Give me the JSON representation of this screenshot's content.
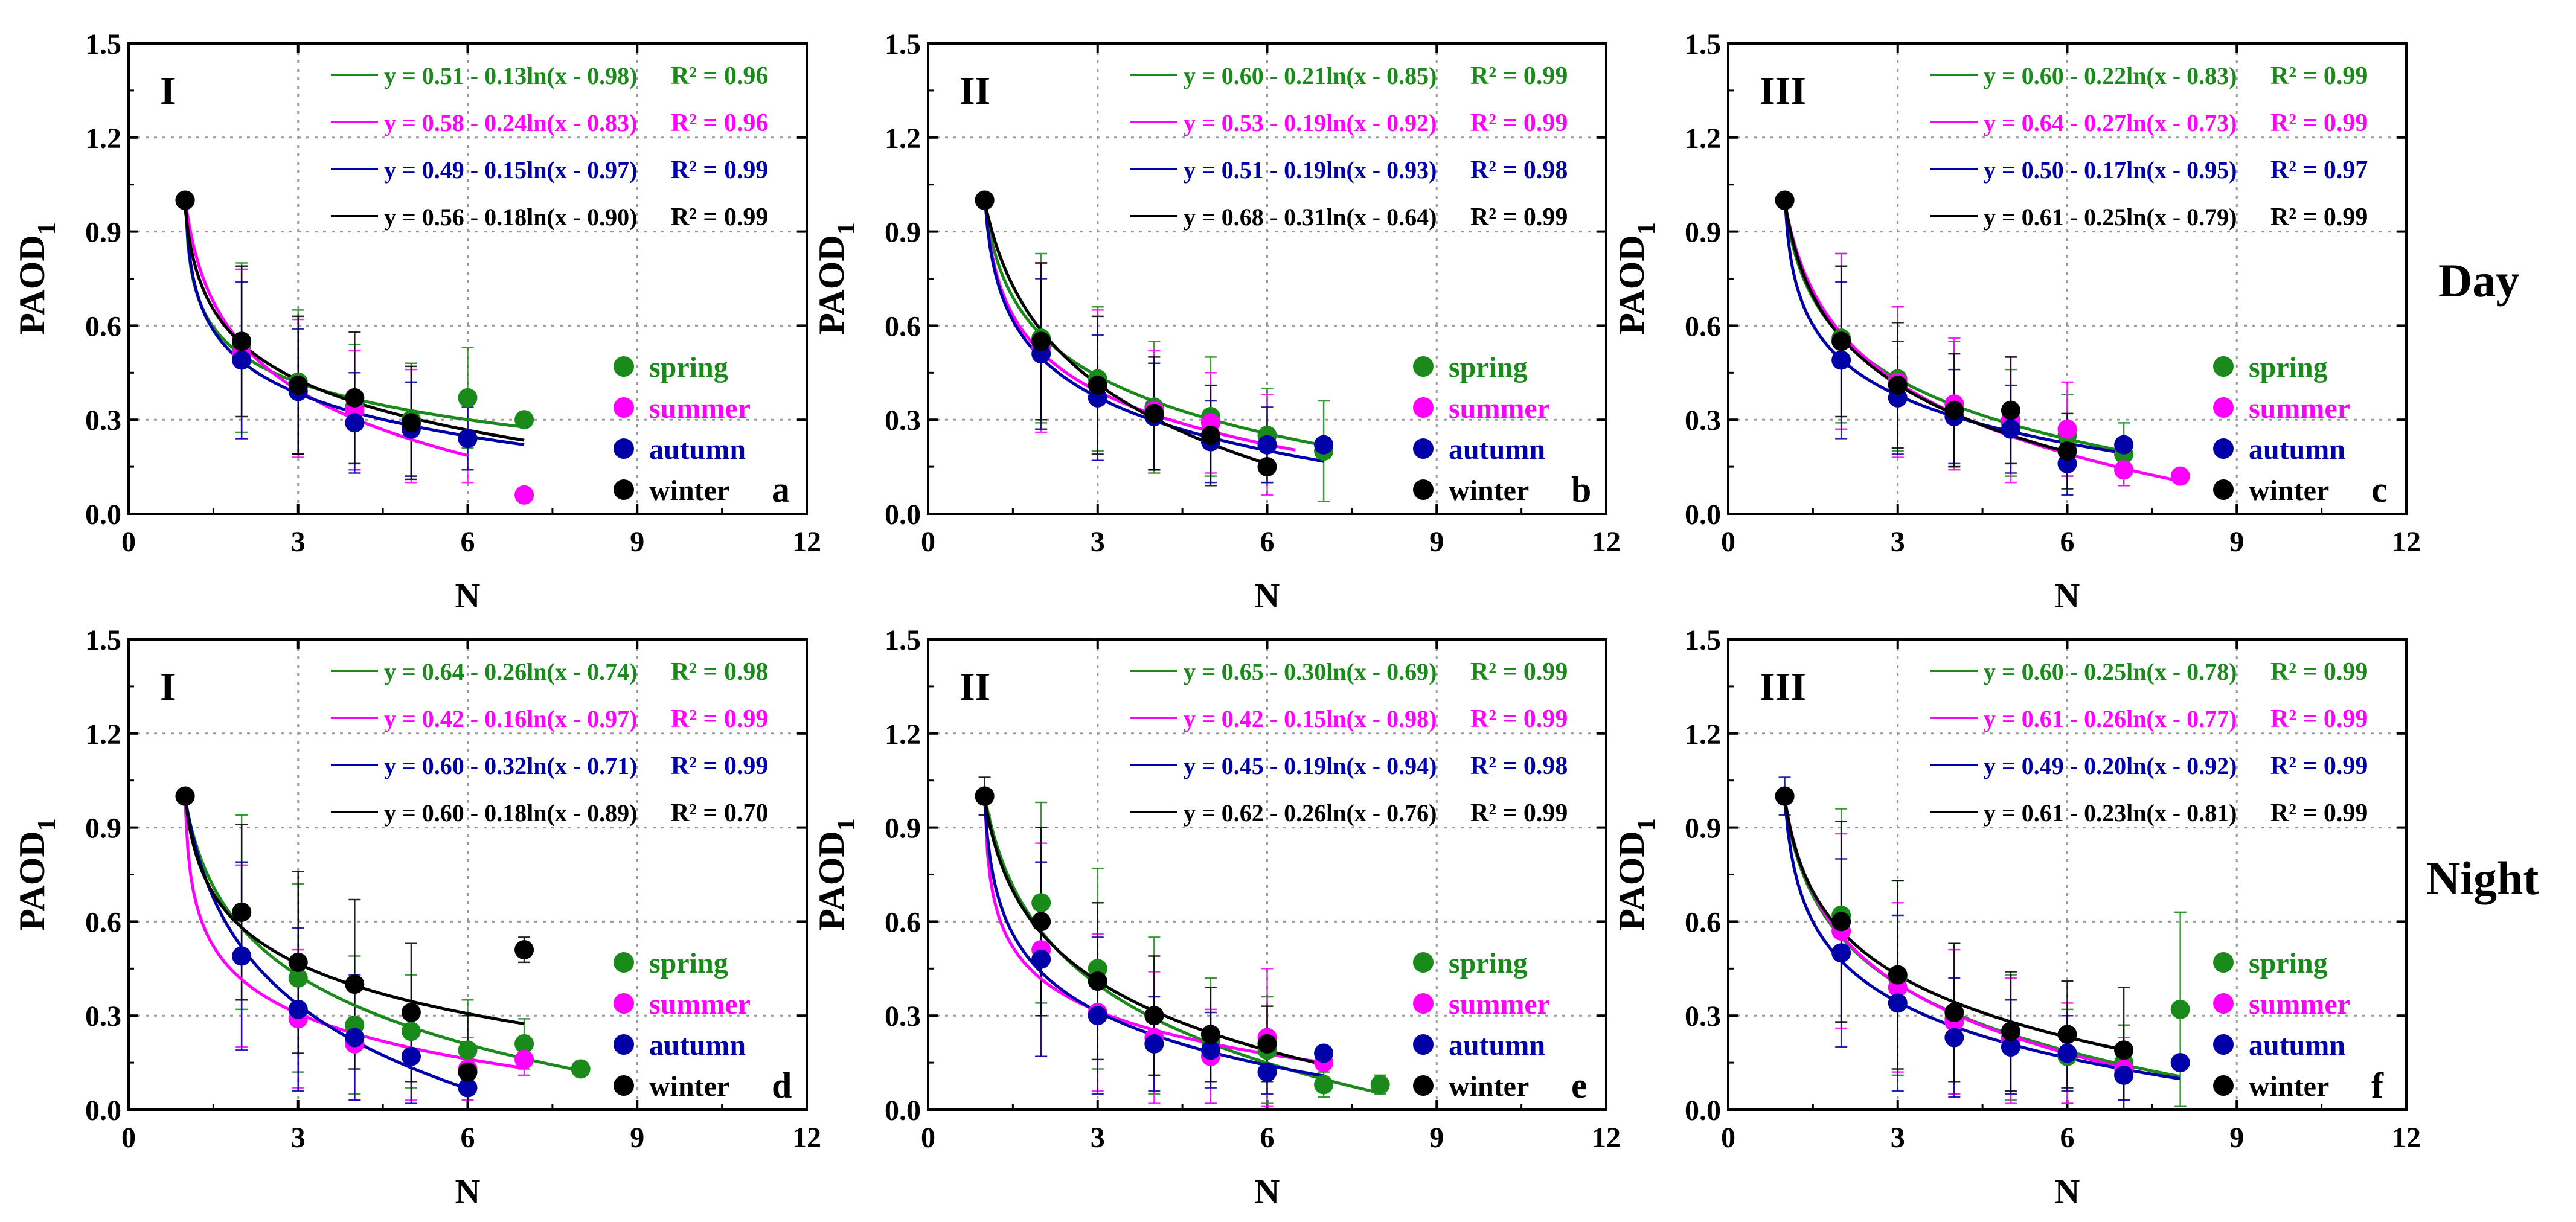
{
  "row_labels": {
    "day": "Day",
    "night": "Night"
  },
  "season_colors": {
    "spring": "#1a8a1a",
    "summer": "#ff00ff",
    "autumn": "#0000a8",
    "winter": "#000000"
  },
  "chart_data": [
    {
      "type": "scatter",
      "panel_letter": "a",
      "region": "I",
      "row": "day",
      "xlabel": "N",
      "ylabel": "PAOD",
      "ylabel_sub": "1",
      "xlim": [
        0,
        12
      ],
      "ylim": [
        0,
        1.5
      ],
      "xticks": [
        "0",
        "3",
        "6",
        "9",
        "12"
      ],
      "yticks": [
        "0.0",
        "0.3",
        "0.6",
        "0.9",
        "1.2",
        "1.5"
      ],
      "legend": [
        "spring",
        "summer",
        "autumn",
        "winter"
      ],
      "legend_position": "right",
      "series": [
        {
          "name": "spring",
          "fit": "y = 0.51 - 0.13ln(x - 0.98)",
          "r2": "R² = 0.96",
          "a": 0.51,
          "b": 0.13,
          "c": 0.98,
          "xmax": 7.0,
          "x": [
            1,
            2,
            3,
            4,
            5,
            6,
            7
          ],
          "y": [
            1.0,
            0.53,
            0.42,
            0.34,
            0.3,
            0.37,
            0.3
          ],
          "err": [
            0.0,
            0.27,
            0.23,
            0.2,
            0.18,
            0.16,
            0.0
          ]
        },
        {
          "name": "summer",
          "fit": "y = 0.58 - 0.24ln(x - 0.83)",
          "r2": "R² = 0.96",
          "a": 0.58,
          "b": 0.24,
          "c": 0.83,
          "xmax": 6.0,
          "x": [
            1,
            2,
            3,
            4,
            5,
            6,
            7
          ],
          "y": [
            1.0,
            0.51,
            0.4,
            0.33,
            0.28,
            0.24,
            0.06
          ],
          "err": [
            0.0,
            0.27,
            0.22,
            0.19,
            0.18,
            0.14,
            0.0
          ]
        },
        {
          "name": "autumn",
          "fit": "y = 0.49 - 0.15ln(x - 0.97)",
          "r2": "R² = 0.99",
          "a": 0.49,
          "b": 0.15,
          "c": 0.97,
          "xmax": 7.0,
          "x": [
            1,
            2,
            3,
            4,
            5,
            6
          ],
          "y": [
            1.0,
            0.49,
            0.39,
            0.29,
            0.27,
            0.24
          ],
          "err": [
            0.0,
            0.25,
            0.2,
            0.16,
            0.15,
            0.1
          ]
        },
        {
          "name": "winter",
          "fit": "y = 0.56 - 0.18ln(x - 0.90)",
          "r2": "R² = 0.99",
          "a": 0.56,
          "b": 0.18,
          "c": 0.9,
          "xmax": 7.0,
          "x": [
            1,
            2,
            3,
            4,
            5
          ],
          "y": [
            1.0,
            0.55,
            0.41,
            0.37,
            0.29
          ],
          "err": [
            0.0,
            0.24,
            0.22,
            0.21,
            0.18
          ]
        }
      ]
    },
    {
      "type": "scatter",
      "panel_letter": "b",
      "region": "II",
      "row": "day",
      "xlabel": "N",
      "ylabel": "PAOD",
      "ylabel_sub": "1",
      "xlim": [
        0,
        12
      ],
      "ylim": [
        0,
        1.5
      ],
      "xticks": [
        "0",
        "3",
        "6",
        "9",
        "12"
      ],
      "yticks": [
        "0.0",
        "0.3",
        "0.6",
        "0.9",
        "1.2",
        "1.5"
      ],
      "legend": [
        "spring",
        "summer",
        "autumn",
        "winter"
      ],
      "legend_position": "right",
      "series": [
        {
          "name": "spring",
          "fit": "y = 0.60 - 0.21ln(x - 0.85)",
          "r2": "R² = 0.99",
          "a": 0.6,
          "b": 0.21,
          "c": 0.85,
          "xmax": 7.0,
          "x": [
            1,
            2,
            3,
            4,
            5,
            6,
            7
          ],
          "y": [
            1.0,
            0.56,
            0.43,
            0.34,
            0.31,
            0.25,
            0.2
          ],
          "err": [
            0.0,
            0.27,
            0.23,
            0.21,
            0.19,
            0.15,
            0.16
          ]
        },
        {
          "name": "summer",
          "fit": "y = 0.53 - 0.19ln(x - 0.92)",
          "r2": "R² = 0.99",
          "a": 0.53,
          "b": 0.19,
          "c": 0.92,
          "xmax": 6.5,
          "x": [
            1,
            2,
            3,
            4,
            5,
            6
          ],
          "y": [
            1.0,
            0.53,
            0.41,
            0.33,
            0.29,
            0.22
          ],
          "err": [
            0.0,
            0.27,
            0.24,
            0.19,
            0.16,
            0.16
          ]
        },
        {
          "name": "autumn",
          "fit": "y = 0.51 - 0.19ln(x - 0.93)",
          "r2": "R² = 0.98",
          "a": 0.51,
          "b": 0.19,
          "c": 0.93,
          "xmax": 7.0,
          "x": [
            1,
            2,
            3,
            4,
            5,
            6,
            7
          ],
          "y": [
            1.0,
            0.51,
            0.37,
            0.31,
            0.23,
            0.22,
            0.22
          ],
          "err": [
            0.0,
            0.24,
            0.2,
            0.17,
            0.13,
            0.12,
            0.0
          ]
        },
        {
          "name": "winter",
          "fit": "y = 0.68 - 0.31ln(x - 0.64)",
          "r2": "R² = 0.99",
          "a": 0.68,
          "b": 0.31,
          "c": 0.64,
          "xmax": 6.0,
          "x": [
            1,
            2,
            3,
            4,
            5,
            6
          ],
          "y": [
            1.0,
            0.55,
            0.41,
            0.32,
            0.25,
            0.15
          ],
          "err": [
            0.0,
            0.25,
            0.22,
            0.18,
            0.16,
            0.0
          ]
        }
      ]
    },
    {
      "type": "scatter",
      "panel_letter": "c",
      "region": "III",
      "row": "day",
      "xlabel": "N",
      "ylabel": "PAOD",
      "ylabel_sub": "1",
      "xlim": [
        0,
        12
      ],
      "ylim": [
        0,
        1.5
      ],
      "xticks": [
        "0",
        "3",
        "6",
        "9",
        "12"
      ],
      "yticks": [
        "0.0",
        "0.3",
        "0.6",
        "0.9",
        "1.2",
        "1.5"
      ],
      "legend": [
        "spring",
        "summer",
        "autumn",
        "winter"
      ],
      "legend_position": "right",
      "series": [
        {
          "name": "spring",
          "fit": "y = 0.60 - 0.22ln(x - 0.83)",
          "r2": "R² = 0.99",
          "a": 0.6,
          "b": 0.22,
          "c": 0.83,
          "xmax": 7.0,
          "x": [
            1,
            2,
            3,
            4,
            5,
            6,
            7
          ],
          "y": [
            1.0,
            0.56,
            0.43,
            0.35,
            0.29,
            0.25,
            0.19
          ],
          "err": [
            0.0,
            0.27,
            0.23,
            0.2,
            0.17,
            0.13,
            0.1
          ]
        },
        {
          "name": "summer",
          "fit": "y = 0.64 - 0.27ln(x - 0.73)",
          "r2": "R² = 0.99",
          "a": 0.64,
          "b": 0.27,
          "c": 0.73,
          "xmax": 8.0,
          "x": [
            1,
            2,
            3,
            4,
            5,
            6,
            7,
            8
          ],
          "y": [
            1.0,
            0.55,
            0.42,
            0.35,
            0.3,
            0.27,
            0.14,
            0.12
          ],
          "err": [
            0.0,
            0.28,
            0.24,
            0.21,
            0.2,
            0.15,
            0.05,
            0.0
          ]
        },
        {
          "name": "autumn",
          "fit": "y = 0.50 - 0.17ln(x - 0.95)",
          "r2": "R² = 0.97",
          "a": 0.5,
          "b": 0.17,
          "c": 0.95,
          "xmax": 7.0,
          "x": [
            1,
            2,
            3,
            4,
            5,
            6,
            7
          ],
          "y": [
            1.0,
            0.49,
            0.37,
            0.31,
            0.27,
            0.16,
            0.22
          ],
          "err": [
            0.0,
            0.25,
            0.18,
            0.15,
            0.14,
            0.1,
            0.0
          ]
        },
        {
          "name": "winter",
          "fit": "y = 0.61 - 0.25ln(x - 0.79)",
          "r2": "R² = 0.99",
          "a": 0.61,
          "b": 0.25,
          "c": 0.79,
          "xmax": 6.0,
          "x": [
            1,
            2,
            3,
            4,
            5,
            6
          ],
          "y": [
            1.0,
            0.55,
            0.41,
            0.33,
            0.33,
            0.2
          ],
          "err": [
            0.0,
            0.24,
            0.2,
            0.18,
            0.17,
            0.12
          ]
        }
      ]
    },
    {
      "type": "scatter",
      "panel_letter": "d",
      "region": "I",
      "row": "night",
      "xlabel": "N",
      "ylabel": "PAOD",
      "ylabel_sub": "1",
      "xlim": [
        0,
        12
      ],
      "ylim": [
        0,
        1.5
      ],
      "xticks": [
        "0",
        "3",
        "6",
        "9",
        "12"
      ],
      "yticks": [
        "0.0",
        "0.3",
        "0.6",
        "0.9",
        "1.2",
        "1.5"
      ],
      "legend": [
        "spring",
        "summer",
        "autumn",
        "winter"
      ],
      "legend_position": "right",
      "series": [
        {
          "name": "spring",
          "fit": "y = 0.64 - 0.26ln(x - 0.74)",
          "r2": "R² = 0.98",
          "a": 0.64,
          "b": 0.26,
          "c": 0.74,
          "xmax": 8.0,
          "x": [
            1,
            2,
            3,
            4,
            5,
            6,
            7,
            8
          ],
          "y": [
            1.0,
            0.63,
            0.42,
            0.27,
            0.25,
            0.19,
            0.21,
            0.13
          ],
          "err": [
            0.0,
            0.31,
            0.3,
            0.22,
            0.18,
            0.16,
            0.08,
            0.0
          ]
        },
        {
          "name": "summer",
          "fit": "y = 0.42 - 0.16ln(x - 0.97)",
          "r2": "R² = 0.99",
          "a": 0.42,
          "b": 0.16,
          "c": 0.97,
          "xmax": 7.0,
          "x": [
            1,
            2,
            3,
            4,
            5,
            6,
            7
          ],
          "y": [
            1.0,
            0.49,
            0.29,
            0.21,
            0.17,
            0.13,
            0.16
          ],
          "err": [
            0.0,
            0.29,
            0.22,
            0.18,
            0.14,
            0.1,
            0.05
          ]
        },
        {
          "name": "autumn",
          "fit": "y = 0.60 - 0.32ln(x - 0.71)",
          "r2": "R² = 0.99",
          "a": 0.6,
          "b": 0.32,
          "c": 0.71,
          "xmax": 6.0,
          "x": [
            1,
            2,
            3,
            4,
            5,
            6
          ],
          "y": [
            1.0,
            0.49,
            0.32,
            0.23,
            0.17,
            0.07
          ],
          "err": [
            0.0,
            0.3,
            0.26,
            0.2,
            0.15,
            0.08
          ]
        },
        {
          "name": "winter",
          "fit": "y = 0.60 - 0.18ln(x - 0.89)",
          "r2": "R² = 0.70",
          "a": 0.6,
          "b": 0.18,
          "c": 0.89,
          "xmax": 7.0,
          "x": [
            1,
            2,
            3,
            4,
            5,
            6,
            7
          ],
          "y": [
            1.0,
            0.63,
            0.47,
            0.4,
            0.31,
            0.12,
            0.51
          ],
          "err": [
            0.0,
            0.28,
            0.29,
            0.27,
            0.22,
            0.18,
            0.04
          ]
        }
      ]
    },
    {
      "type": "scatter",
      "panel_letter": "e",
      "region": "II",
      "row": "night",
      "xlabel": "N",
      "ylabel": "PAOD",
      "ylabel_sub": "1",
      "xlim": [
        0,
        12
      ],
      "ylim": [
        0,
        1.5
      ],
      "xticks": [
        "0",
        "3",
        "6",
        "9",
        "12"
      ],
      "yticks": [
        "0.0",
        "0.3",
        "0.6",
        "0.9",
        "1.2",
        "1.5"
      ],
      "legend": [
        "spring",
        "summer",
        "autumn",
        "winter"
      ],
      "legend_position": "right",
      "series": [
        {
          "name": "spring",
          "fit": "y = 0.65 - 0.30ln(x - 0.69)",
          "r2": "R² = 0.99",
          "a": 0.65,
          "b": 0.3,
          "c": 0.69,
          "xmax": 8.0,
          "x": [
            1,
            2,
            3,
            4,
            5,
            6,
            7,
            8
          ],
          "y": [
            1.0,
            0.66,
            0.45,
            0.3,
            0.22,
            0.19,
            0.08,
            0.08
          ],
          "err": [
            0.0,
            0.32,
            0.32,
            0.25,
            0.2,
            0.17,
            0.04,
            0.03
          ]
        },
        {
          "name": "summer",
          "fit": "y = 0.42 - 0.15ln(x - 0.98)",
          "r2": "R² = 0.99",
          "a": 0.42,
          "b": 0.15,
          "c": 0.98,
          "xmax": 7.0,
          "x": [
            1,
            2,
            3,
            4,
            5,
            6,
            7
          ],
          "y": [
            1.0,
            0.51,
            0.31,
            0.23,
            0.17,
            0.23,
            0.15
          ],
          "err": [
            0.0,
            0.34,
            0.25,
            0.21,
            0.15,
            0.22,
            0.0
          ]
        },
        {
          "name": "autumn",
          "fit": "y = 0.45 - 0.19ln(x - 0.94)",
          "r2": "R² = 0.98",
          "a": 0.45,
          "b": 0.19,
          "c": 0.94,
          "xmax": 7.0,
          "x": [
            1,
            2,
            3,
            4,
            5,
            6,
            7
          ],
          "y": [
            1.0,
            0.48,
            0.3,
            0.21,
            0.19,
            0.12,
            0.18
          ],
          "err": [
            0.0,
            0.31,
            0.25,
            0.15,
            0.12,
            0.07,
            0.0
          ]
        },
        {
          "name": "winter",
          "fit": "y = 0.62 - 0.26ln(x - 0.76)",
          "r2": "R² = 0.99",
          "a": 0.62,
          "b": 0.26,
          "c": 0.76,
          "xmax": 7.0,
          "x": [
            1,
            2,
            3,
            4,
            5,
            6
          ],
          "y": [
            1.0,
            0.6,
            0.41,
            0.3,
            0.24,
            0.21
          ],
          "err": [
            0.06,
            0.3,
            0.25,
            0.19,
            0.15,
            0.12
          ]
        }
      ]
    },
    {
      "type": "scatter",
      "panel_letter": "f",
      "region": "III",
      "row": "night",
      "xlabel": "N",
      "ylabel": "PAOD",
      "ylabel_sub": "1",
      "xlim": [
        0,
        12
      ],
      "ylim": [
        0,
        1.5
      ],
      "xticks": [
        "0",
        "3",
        "6",
        "9",
        "12"
      ],
      "yticks": [
        "0.0",
        "0.3",
        "0.6",
        "0.9",
        "1.2",
        "1.5"
      ],
      "legend": [
        "spring",
        "summer",
        "autumn",
        "winter"
      ],
      "legend_position": "right",
      "series": [
        {
          "name": "spring",
          "fit": "y = 0.60 - 0.25ln(x - 0.78)",
          "r2": "R² = 0.99",
          "a": 0.6,
          "b": 0.25,
          "c": 0.78,
          "xmax": 8.0,
          "x": [
            1,
            2,
            3,
            4,
            5,
            6,
            7,
            8
          ],
          "y": [
            1.0,
            0.62,
            0.42,
            0.29,
            0.23,
            0.17,
            0.15,
            0.32
          ],
          "err": [
            0.0,
            0.34,
            0.31,
            0.24,
            0.2,
            0.15,
            0.12,
            0.31
          ]
        },
        {
          "name": "summer",
          "fit": "y = 0.61 - 0.26ln(x - 0.77)",
          "r2": "R² = 0.99",
          "a": 0.61,
          "b": 0.26,
          "c": 0.77,
          "xmax": 7.0,
          "x": [
            1,
            2,
            3,
            4,
            5,
            6,
            7
          ],
          "y": [
            1.0,
            0.57,
            0.39,
            0.28,
            0.22,
            0.18,
            0.13
          ],
          "err": [
            0.0,
            0.31,
            0.27,
            0.23,
            0.2,
            0.16,
            0.1
          ]
        },
        {
          "name": "autumn",
          "fit": "y = 0.49 - 0.20ln(x - 0.92)",
          "r2": "R² = 0.99",
          "a": 0.49,
          "b": 0.2,
          "c": 0.92,
          "xmax": 8.0,
          "x": [
            1,
            2,
            3,
            4,
            5,
            6,
            7,
            8
          ],
          "y": [
            1.0,
            0.5,
            0.34,
            0.23,
            0.2,
            0.18,
            0.11,
            0.15
          ],
          "err": [
            0.06,
            0.3,
            0.28,
            0.19,
            0.15,
            0.12,
            0.08,
            0.0
          ]
        },
        {
          "name": "winter",
          "fit": "y = 0.61 - 0.23ln(x - 0.81)",
          "r2": "R² = 0.99",
          "a": 0.61,
          "b": 0.23,
          "c": 0.81,
          "xmax": 7.0,
          "x": [
            1,
            2,
            3,
            4,
            5,
            6,
            7
          ],
          "y": [
            1.0,
            0.6,
            0.43,
            0.31,
            0.25,
            0.24,
            0.19
          ],
          "err": [
            0.0,
            0.32,
            0.3,
            0.22,
            0.19,
            0.17,
            0.2
          ]
        }
      ]
    }
  ]
}
